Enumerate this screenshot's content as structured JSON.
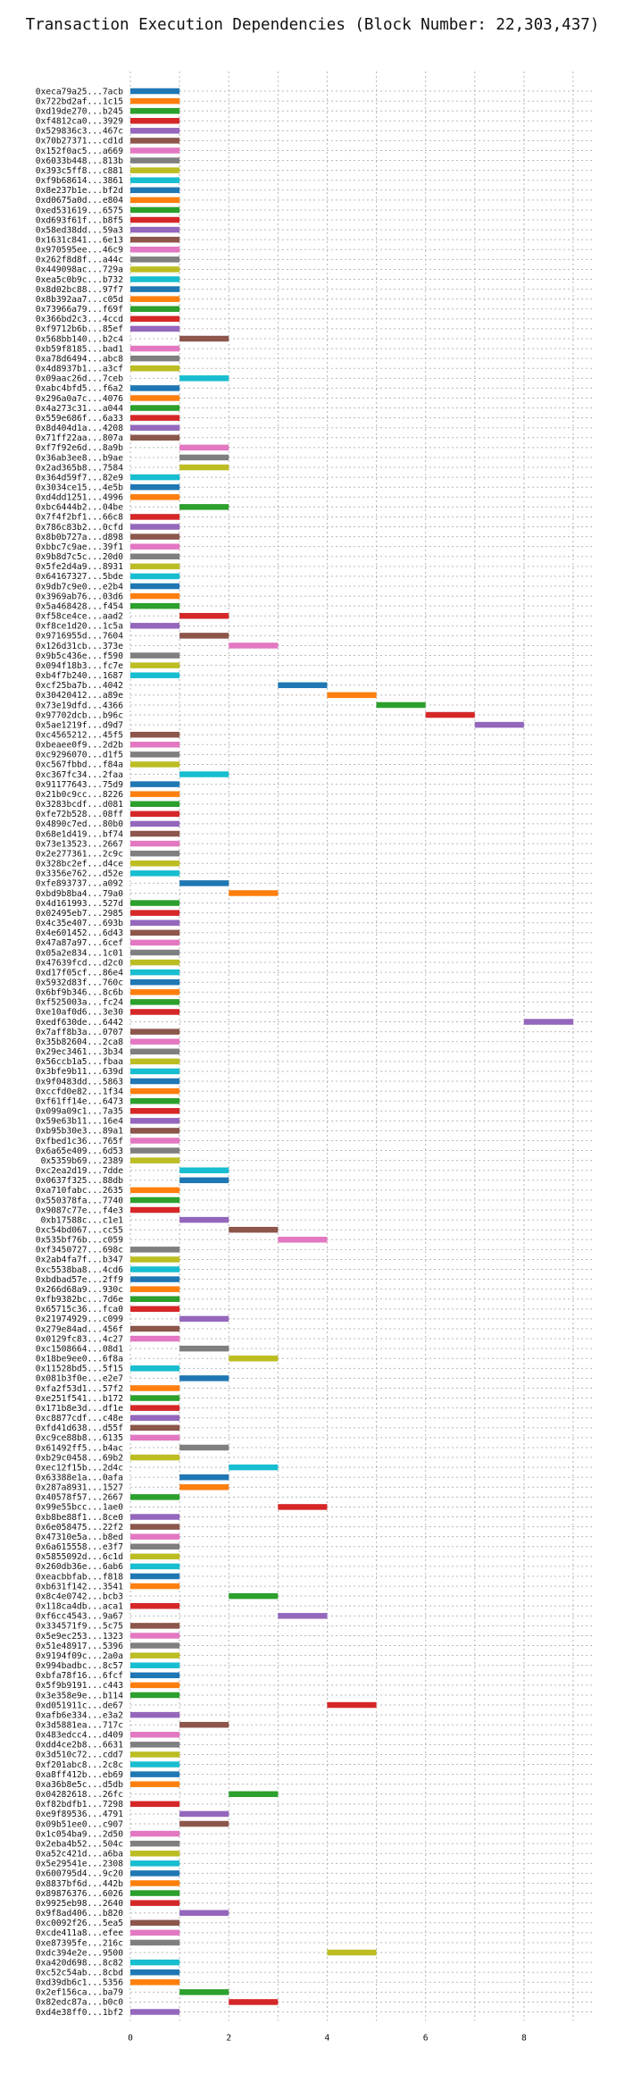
{
  "chart_data": {
    "type": "bar",
    "orientation": "horizontal",
    "title": "Transaction Execution Dependencies (Block Number: 22,303,437)",
    "xlabel": "",
    "ylabel": "",
    "xlim": [
      0,
      9.4
    ],
    "x_ticks": [
      0,
      2,
      4,
      6,
      8
    ],
    "grid": true,
    "legend": "none",
    "palette": [
      "#1f77b4",
      "#ff7f0e",
      "#2ca02c",
      "#d62728",
      "#9467bd",
      "#8c564b",
      "#e377c2",
      "#7f7f7f",
      "#bcbd22",
      "#17becf"
    ],
    "transactions": [
      {
        "label": "0xeca79a25...7acb",
        "start": 0,
        "end": 1
      },
      {
        "label": "0x722bd2af...1c15",
        "start": 0,
        "end": 1
      },
      {
        "label": "0xd19de270...b245",
        "start": 0,
        "end": 1
      },
      {
        "label": "0xf4812ca0...3929",
        "start": 0,
        "end": 1
      },
      {
        "label": "0x529836c3...467c",
        "start": 0,
        "end": 1
      },
      {
        "label": "0x70b27371...cd1d",
        "start": 0,
        "end": 1
      },
      {
        "label": "0x152f0ac5...a669",
        "start": 0,
        "end": 1
      },
      {
        "label": "0x6033b448...813b",
        "start": 0,
        "end": 1
      },
      {
        "label": "0x393c5ff8...c881",
        "start": 0,
        "end": 1
      },
      {
        "label": "0xf9b68614...3861",
        "start": 0,
        "end": 1
      },
      {
        "label": "0x8e237b1e...bf2d",
        "start": 0,
        "end": 1
      },
      {
        "label": "0xd0675a0d...e804",
        "start": 0,
        "end": 1
      },
      {
        "label": "0xed531619...6575",
        "start": 0,
        "end": 1
      },
      {
        "label": "0xd693f61f...b8f5",
        "start": 0,
        "end": 1
      },
      {
        "label": "0x58ed38dd...59a3",
        "start": 0,
        "end": 1
      },
      {
        "label": "0x1631c841...6e13",
        "start": 0,
        "end": 1
      },
      {
        "label": "0x970595ee...46c9",
        "start": 0,
        "end": 1
      },
      {
        "label": "0x262f8d8f...a44c",
        "start": 0,
        "end": 1
      },
      {
        "label": "0x449098ac...729a",
        "start": 0,
        "end": 1
      },
      {
        "label": "0xea5c0b9c...b732",
        "start": 0,
        "end": 1
      },
      {
        "label": "0x8d02bc88...97f7",
        "start": 0,
        "end": 1
      },
      {
        "label": "0x8b392aa7...c05d",
        "start": 0,
        "end": 1
      },
      {
        "label": "0x73966a79...f69f",
        "start": 0,
        "end": 1
      },
      {
        "label": "0x366bd2c3...4ccd",
        "start": 0,
        "end": 1
      },
      {
        "label": "0xf9712b6b...85ef",
        "start": 0,
        "end": 1
      },
      {
        "label": "0x568bb140...b2c4",
        "start": 1,
        "end": 2
      },
      {
        "label": "0xb59f8185...bad1",
        "start": 0,
        "end": 1
      },
      {
        "label": "0xa78d6494...abc8",
        "start": 0,
        "end": 1
      },
      {
        "label": "0x4d8937b1...a3cf",
        "start": 0,
        "end": 1
      },
      {
        "label": "0x09aac26d...7ceb",
        "start": 1,
        "end": 2
      },
      {
        "label": "0xabc4bfd5...f6a2",
        "start": 0,
        "end": 1
      },
      {
        "label": "0x296a0a7c...4076",
        "start": 0,
        "end": 1
      },
      {
        "label": "0x4a273c31...a044",
        "start": 0,
        "end": 1
      },
      {
        "label": "0x559e686f...6a33",
        "start": 0,
        "end": 1
      },
      {
        "label": "0x8d404d1a...4208",
        "start": 0,
        "end": 1
      },
      {
        "label": "0x71ff22aa...807a",
        "start": 0,
        "end": 1
      },
      {
        "label": "0xf7f92e6d...8a9b",
        "start": 1,
        "end": 2
      },
      {
        "label": "0x36ab3ee8...b9ae",
        "start": 1,
        "end": 2
      },
      {
        "label": "0x2ad365b8...7584",
        "start": 1,
        "end": 2
      },
      {
        "label": "0x364d59f7...82e9",
        "start": 0,
        "end": 1
      },
      {
        "label": "0x3034ce15...4e5b",
        "start": 0,
        "end": 1
      },
      {
        "label": "0xd4dd1251...4996",
        "start": 0,
        "end": 1
      },
      {
        "label": "0xbc6444b2...04be",
        "start": 1,
        "end": 2
      },
      {
        "label": "0x7f4f2bf1...66c8",
        "start": 0,
        "end": 1
      },
      {
        "label": "0x786c83b2...0cfd",
        "start": 0,
        "end": 1
      },
      {
        "label": "0x8b0b727a...d898",
        "start": 0,
        "end": 1
      },
      {
        "label": "0xbbc7c9ae...39f1",
        "start": 0,
        "end": 1
      },
      {
        "label": "0x9b8d7c5c...20d0",
        "start": 0,
        "end": 1
      },
      {
        "label": "0x5fe2d4a9...8931",
        "start": 0,
        "end": 1
      },
      {
        "label": "0x64167327...5bde",
        "start": 0,
        "end": 1
      },
      {
        "label": "0x9db7c9e0...e2b4",
        "start": 0,
        "end": 1
      },
      {
        "label": "0x3969ab76...03d6",
        "start": 0,
        "end": 1
      },
      {
        "label": "0x5a468428...f454",
        "start": 0,
        "end": 1
      },
      {
        "label": "0xf58ce4ce...aad2",
        "start": 1,
        "end": 2
      },
      {
        "label": "0xf8ce1d20...1c5a",
        "start": 0,
        "end": 1
      },
      {
        "label": "0x9716955d...7604",
        "start": 1,
        "end": 2
      },
      {
        "label": "0x126d31cb...373e",
        "start": 2,
        "end": 3
      },
      {
        "label": "0x9b5c436e...f590",
        "start": 0,
        "end": 1
      },
      {
        "label": "0x094f18b3...fc7e",
        "start": 0,
        "end": 1
      },
      {
        "label": "0xb4f7b240...1687",
        "start": 0,
        "end": 1
      },
      {
        "label": "0xcf25ba7b...4042",
        "start": 3,
        "end": 4
      },
      {
        "label": "0x30420412...a89e",
        "start": 4,
        "end": 5
      },
      {
        "label": "0x73e19dfd...4366",
        "start": 5,
        "end": 6
      },
      {
        "label": "0x97702dcb...b96c",
        "start": 6,
        "end": 7
      },
      {
        "label": "0x5ae1219f...d9d7",
        "start": 7,
        "end": 8
      },
      {
        "label": "0xc4565212...45f5",
        "start": 0,
        "end": 1
      },
      {
        "label": "0xbeaee0f9...2d2b",
        "start": 0,
        "end": 1
      },
      {
        "label": "0xc9296070...d1f5",
        "start": 0,
        "end": 1
      },
      {
        "label": "0xc567fbbd...f84a",
        "start": 0,
        "end": 1
      },
      {
        "label": "0xc367fc34...2faa",
        "start": 1,
        "end": 2
      },
      {
        "label": "0x91177643...75d9",
        "start": 0,
        "end": 1
      },
      {
        "label": "0x21b0c9cc...8226",
        "start": 0,
        "end": 1
      },
      {
        "label": "0x3283bcdf...d081",
        "start": 0,
        "end": 1
      },
      {
        "label": "0xfe72b528...08ff",
        "start": 0,
        "end": 1
      },
      {
        "label": "0x4890c7ed...80b0",
        "start": 0,
        "end": 1
      },
      {
        "label": "0x68e1d419...bf74",
        "start": 0,
        "end": 1
      },
      {
        "label": "0x73e13523...2667",
        "start": 0,
        "end": 1
      },
      {
        "label": "0x2e277361...2c9c",
        "start": 0,
        "end": 1
      },
      {
        "label": "0x328bc2ef...d4ce",
        "start": 0,
        "end": 1
      },
      {
        "label": "0x3356e762...d52e",
        "start": 0,
        "end": 1
      },
      {
        "label": "0xfe893737...a092",
        "start": 1,
        "end": 2
      },
      {
        "label": "0xbd9b8ba4...79a0",
        "start": 2,
        "end": 3
      },
      {
        "label": "0x4d161993...527d",
        "start": 0,
        "end": 1
      },
      {
        "label": "0x02495eb7...2985",
        "start": 0,
        "end": 1
      },
      {
        "label": "0x4c35e407...693b",
        "start": 0,
        "end": 1
      },
      {
        "label": "0x4e601452...6d43",
        "start": 0,
        "end": 1
      },
      {
        "label": "0x47a87a97...6cef",
        "start": 0,
        "end": 1
      },
      {
        "label": "0x05a2e834...1c01",
        "start": 0,
        "end": 1
      },
      {
        "label": "0x47639fcd...d2c0",
        "start": 0,
        "end": 1
      },
      {
        "label": "0xd17f05cf...86e4",
        "start": 0,
        "end": 1
      },
      {
        "label": "0x5932d83f...760c",
        "start": 0,
        "end": 1
      },
      {
        "label": "0x6bf9b346...8c6b",
        "start": 0,
        "end": 1
      },
      {
        "label": "0xf525003a...fc24",
        "start": 0,
        "end": 1
      },
      {
        "label": "0xe10af0d6...3e30",
        "start": 0,
        "end": 1
      },
      {
        "label": "0xedf630de...6442",
        "start": 8,
        "end": 9
      },
      {
        "label": "0x7aff8b3a...0707",
        "start": 0,
        "end": 1
      },
      {
        "label": "0x35b82604...2ca8",
        "start": 0,
        "end": 1
      },
      {
        "label": "0x29ec3461...3b34",
        "start": 0,
        "end": 1
      },
      {
        "label": "0x56ccb1a5...fbaa",
        "start": 0,
        "end": 1
      },
      {
        "label": "0x3bfe9b11...639d",
        "start": 0,
        "end": 1
      },
      {
        "label": "0x9f0483dd...5863",
        "start": 0,
        "end": 1
      },
      {
        "label": "0xccfd0e82...1f34",
        "start": 0,
        "end": 1
      },
      {
        "label": "0xf61ff14e...6473",
        "start": 0,
        "end": 1
      },
      {
        "label": "0x099a09c1...7a35",
        "start": 0,
        "end": 1
      },
      {
        "label": "0x59e63b11...16e4",
        "start": 0,
        "end": 1
      },
      {
        "label": "0xb95b30e3...89a1",
        "start": 0,
        "end": 1
      },
      {
        "label": "0xfbed1c36...765f",
        "start": 0,
        "end": 1
      },
      {
        "label": "0x6a65e409...6d53",
        "start": 0,
        "end": 1
      },
      {
        "label": "0x5359b69...2389",
        "start": 0,
        "end": 1
      },
      {
        "label": "0xc2ea2d19...7dde",
        "start": 1,
        "end": 2
      },
      {
        "label": "0x0637f325...88db",
        "start": 1,
        "end": 2
      },
      {
        "label": "0xa710fabc...2635",
        "start": 0,
        "end": 1
      },
      {
        "label": "0x550378fa...7740",
        "start": 0,
        "end": 1
      },
      {
        "label": "0x9087c77e...f4e3",
        "start": 0,
        "end": 1
      },
      {
        "label": "0xb17588c...c1e1",
        "start": 1,
        "end": 2
      },
      {
        "label": "0xc54bd067...cc55",
        "start": 2,
        "end": 3
      },
      {
        "label": "0x535bf76b...c059",
        "start": 3,
        "end": 4
      },
      {
        "label": "0xf3450727...698c",
        "start": 0,
        "end": 1
      },
      {
        "label": "0x2ab4fa7f...b347",
        "start": 0,
        "end": 1
      },
      {
        "label": "0xc5538ba8...4cd6",
        "start": 0,
        "end": 1
      },
      {
        "label": "0xbdbad57e...2ff9",
        "start": 0,
        "end": 1
      },
      {
        "label": "0x266d68a9...930c",
        "start": 0,
        "end": 1
      },
      {
        "label": "0xfb9382bc...7d6e",
        "start": 0,
        "end": 1
      },
      {
        "label": "0x65715c36...fca0",
        "start": 0,
        "end": 1
      },
      {
        "label": "0x21974929...c099",
        "start": 1,
        "end": 2
      },
      {
        "label": "0x279e84ad...456f",
        "start": 0,
        "end": 1
      },
      {
        "label": "0x0129fc83...4c27",
        "start": 0,
        "end": 1
      },
      {
        "label": "0xc1508664...08d1",
        "start": 1,
        "end": 2
      },
      {
        "label": "0x18be9ee0...6f8a",
        "start": 2,
        "end": 3
      },
      {
        "label": "0x11528bd5...5f15",
        "start": 0,
        "end": 1
      },
      {
        "label": "0x081b3f0e...e2e7",
        "start": 1,
        "end": 2
      },
      {
        "label": "0xfa2f53d1...57f2",
        "start": 0,
        "end": 1
      },
      {
        "label": "0xe251f541...b172",
        "start": 0,
        "end": 1
      },
      {
        "label": "0x171b8e3d...df1e",
        "start": 0,
        "end": 1
      },
      {
        "label": "0xc8877cdf...c48e",
        "start": 0,
        "end": 1
      },
      {
        "label": "0xfd41d638...d55f",
        "start": 0,
        "end": 1
      },
      {
        "label": "0xc9ce88b8...6135",
        "start": 0,
        "end": 1
      },
      {
        "label": "0x61492ff5...b4ac",
        "start": 1,
        "end": 2
      },
      {
        "label": "0xb29c0458...69b2",
        "start": 0,
        "end": 1
      },
      {
        "label": "0xec12f15b...2d4c",
        "start": 2,
        "end": 3
      },
      {
        "label": "0x63388e1a...0afa",
        "start": 1,
        "end": 2
      },
      {
        "label": "0x287a8931...1527",
        "start": 1,
        "end": 2
      },
      {
        "label": "0x40578f57...2667",
        "start": 0,
        "end": 1
      },
      {
        "label": "0x99e55bcc...1ae0",
        "start": 3,
        "end": 4
      },
      {
        "label": "0xb8be88f1...8ce0",
        "start": 0,
        "end": 1
      },
      {
        "label": "0x6e058475...22f2",
        "start": 0,
        "end": 1
      },
      {
        "label": "0x47310e5a...b8ed",
        "start": 0,
        "end": 1
      },
      {
        "label": "0x6a615558...e3f7",
        "start": 0,
        "end": 1
      },
      {
        "label": "0x5855092d...6c1d",
        "start": 0,
        "end": 1
      },
      {
        "label": "0x260db36e...6ab6",
        "start": 0,
        "end": 1
      },
      {
        "label": "0xeacbbfab...f818",
        "start": 0,
        "end": 1
      },
      {
        "label": "0xb631f142...3541",
        "start": 0,
        "end": 1
      },
      {
        "label": "0x8c4e0742...bcb3",
        "start": 2,
        "end": 3
      },
      {
        "label": "0x118ca4db...aca1",
        "start": 0,
        "end": 1
      },
      {
        "label": "0xf6cc4543...9a67",
        "start": 3,
        "end": 4
      },
      {
        "label": "0x334571f9...5c75",
        "start": 0,
        "end": 1
      },
      {
        "label": "0x5e9ec253...1323",
        "start": 0,
        "end": 1
      },
      {
        "label": "0x51e48917...5396",
        "start": 0,
        "end": 1
      },
      {
        "label": "0x9194f09c...2a0a",
        "start": 0,
        "end": 1
      },
      {
        "label": "0x994badbc...8c57",
        "start": 0,
        "end": 1
      },
      {
        "label": "0xbfa78f16...6fcf",
        "start": 0,
        "end": 1
      },
      {
        "label": "0x5f9b9191...c443",
        "start": 0,
        "end": 1
      },
      {
        "label": "0x3e358e9e...b114",
        "start": 0,
        "end": 1
      },
      {
        "label": "0xd051911c...de67",
        "start": 4,
        "end": 5
      },
      {
        "label": "0xafb6e334...e3a2",
        "start": 0,
        "end": 1
      },
      {
        "label": "0x3d5881ea...717c",
        "start": 1,
        "end": 2
      },
      {
        "label": "0x483edcc4...d409",
        "start": 0,
        "end": 1
      },
      {
        "label": "0xdd4ce2b8...6631",
        "start": 0,
        "end": 1
      },
      {
        "label": "0x3d510c72...cdd7",
        "start": 0,
        "end": 1
      },
      {
        "label": "0xf201abc8...2c8c",
        "start": 0,
        "end": 1
      },
      {
        "label": "0xa8ff412b...eb69",
        "start": 0,
        "end": 1
      },
      {
        "label": "0xa36b8e5c...d5db",
        "start": 0,
        "end": 1
      },
      {
        "label": "0x04282618...26fc",
        "start": 2,
        "end": 3
      },
      {
        "label": "0xf82bdfb1...7298",
        "start": 0,
        "end": 1
      },
      {
        "label": "0xe9f89536...4791",
        "start": 1,
        "end": 2
      },
      {
        "label": "0x09b51ee0...c907",
        "start": 1,
        "end": 2
      },
      {
        "label": "0x1c054ba9...2d50",
        "start": 0,
        "end": 1
      },
      {
        "label": "0x2eba4b52...504c",
        "start": 0,
        "end": 1
      },
      {
        "label": "0xa52c421d...a6ba",
        "start": 0,
        "end": 1
      },
      {
        "label": "0x5e29541e...2308",
        "start": 0,
        "end": 1
      },
      {
        "label": "0x600795d4...9c20",
        "start": 0,
        "end": 1
      },
      {
        "label": "0x8837bf6d...442b",
        "start": 0,
        "end": 1
      },
      {
        "label": "0x89876376...6026",
        "start": 0,
        "end": 1
      },
      {
        "label": "0x9925eb98...2640",
        "start": 0,
        "end": 1
      },
      {
        "label": "0x9f8ad406...b820",
        "start": 1,
        "end": 2
      },
      {
        "label": "0xc0092f26...5ea5",
        "start": 0,
        "end": 1
      },
      {
        "label": "0xcde411a8...efee",
        "start": 0,
        "end": 1
      },
      {
        "label": "0xe87395fe...216c",
        "start": 0,
        "end": 1
      },
      {
        "label": "0xdc394e2e...9500",
        "start": 4,
        "end": 5
      },
      {
        "label": "0xa420d698...8c82",
        "start": 0,
        "end": 1
      },
      {
        "label": "0xc52c54ab...8cbd",
        "start": 0,
        "end": 1
      },
      {
        "label": "0xd39db6c1...5356",
        "start": 0,
        "end": 1
      },
      {
        "label": "0x2ef156ca...ba79",
        "start": 1,
        "end": 2
      },
      {
        "label": "0x82edc87a...b0c0",
        "start": 2,
        "end": 3
      },
      {
        "label": "0xd4e38ff0...1bf2",
        "start": 0,
        "end": 1
      }
    ]
  }
}
